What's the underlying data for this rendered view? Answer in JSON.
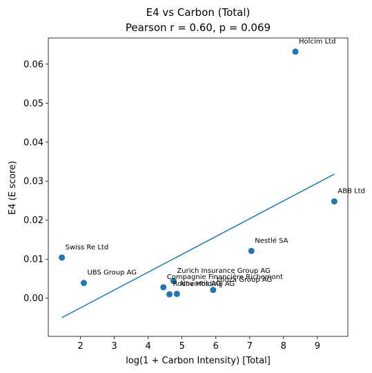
{
  "chart_data": {
    "type": "scatter",
    "title": "E4 vs Carbon (Total)",
    "subtitle": "Pearson r = 0.60, p = 0.069",
    "xlabel": "log(1 + Carbon Intensity) [Total]",
    "ylabel": "E4 (E score)",
    "xlim": [
      1.05,
      9.9
    ],
    "ylim": [
      -0.0098,
      0.0667
    ],
    "xticks": [
      2,
      3,
      4,
      5,
      6,
      7,
      8,
      9
    ],
    "yticks": [
      0.0,
      0.01,
      0.02,
      0.03,
      0.04,
      0.05,
      0.06
    ],
    "ytick_labels": [
      "0.00",
      "0.01",
      "0.02",
      "0.03",
      "0.04",
      "0.05",
      "0.06"
    ],
    "grid": false,
    "points": [
      {
        "label": "Holcim Ltd",
        "x": 8.35,
        "y": 0.0632
      },
      {
        "label": "ABB Ltd",
        "x": 9.5,
        "y": 0.0248
      },
      {
        "label": "Nestlé SA",
        "x": 7.05,
        "y": 0.0121
      },
      {
        "label": "Swiss Re Ltd",
        "x": 1.45,
        "y": 0.0104
      },
      {
        "label": "UBS Group AG",
        "x": 2.1,
        "y": 0.0039
      },
      {
        "label": "Zurich Insurance Group AG",
        "x": 4.75,
        "y": 0.0044
      },
      {
        "label": "Compagnie Financière Richemont",
        "x": 4.45,
        "y": 0.0028
      },
      {
        "label": "Lonza Group AG",
        "x": 5.92,
        "y": 0.0021
      },
      {
        "label": "Novartis AG",
        "x": 4.85,
        "y": 0.0011
      },
      {
        "label": "Roche Holding AG",
        "x": 4.63,
        "y": 0.001
      }
    ],
    "fit_line": {
      "x": [
        1.45,
        9.5
      ],
      "y": [
        -0.005,
        0.0318
      ]
    },
    "colors": {
      "points": "#1f77b4",
      "line": "#1f77b4"
    }
  }
}
